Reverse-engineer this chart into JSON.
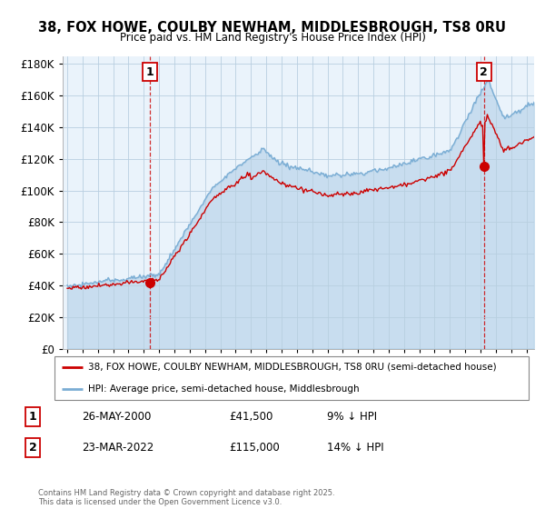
{
  "title": "38, FOX HOWE, COULBY NEWHAM, MIDDLESBROUGH, TS8 0RU",
  "subtitle": "Price paid vs. HM Land Registry's House Price Index (HPI)",
  "line1_label": "38, FOX HOWE, COULBY NEWHAM, MIDDLESBROUGH, TS8 0RU (semi-detached house)",
  "line2_label": "HPI: Average price, semi-detached house, Middlesbrough",
  "line1_color": "#cc0000",
  "line2_color": "#7aadd4",
  "line2_fill_color": "#d0e4f5",
  "marker1_x": 2000.38,
  "marker1_y": 41500,
  "marker2_x": 2022.22,
  "marker2_y": 115000,
  "annotation1": [
    "1",
    "26-MAY-2000",
    "£41,500",
    "9% ↓ HPI"
  ],
  "annotation2": [
    "2",
    "23-MAR-2022",
    "£115,000",
    "14% ↓ HPI"
  ],
  "ylim": [
    0,
    185000
  ],
  "xlim": [
    1994.7,
    2025.5
  ],
  "yticks": [
    0,
    20000,
    40000,
    60000,
    80000,
    100000,
    120000,
    140000,
    160000,
    180000
  ],
  "ytick_labels": [
    "£0",
    "£20K",
    "£40K",
    "£60K",
    "£80K",
    "£100K",
    "£120K",
    "£140K",
    "£160K",
    "£180K"
  ],
  "xticks": [
    1995,
    1996,
    1997,
    1998,
    1999,
    2000,
    2001,
    2002,
    2003,
    2004,
    2005,
    2006,
    2007,
    2008,
    2009,
    2010,
    2011,
    2012,
    2013,
    2014,
    2015,
    2016,
    2017,
    2018,
    2019,
    2020,
    2021,
    2022,
    2023,
    2024,
    2025
  ],
  "footnote": "Contains HM Land Registry data © Crown copyright and database right 2025.\nThis data is licensed under the Open Government Licence v3.0.",
  "bg_color": "#eaf3fb",
  "grid_color": "#b8cfe0"
}
